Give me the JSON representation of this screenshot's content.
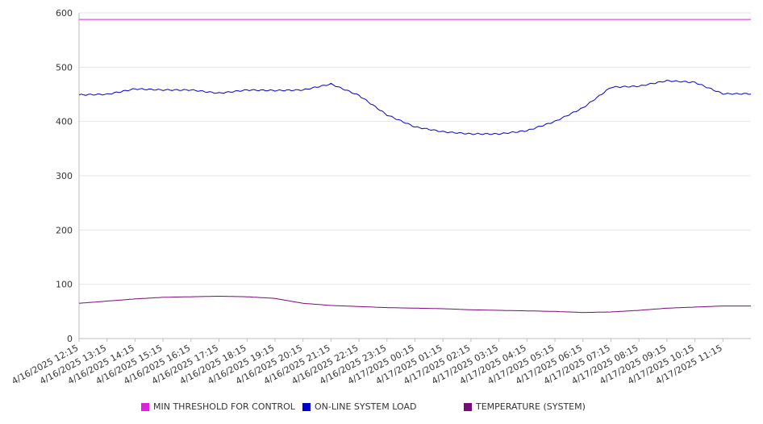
{
  "chart_data": {
    "type": "line",
    "title": "",
    "xlabel": "",
    "ylabel": "",
    "ylim": [
      0,
      600
    ],
    "y_ticks": [
      0,
      100,
      200,
      300,
      400,
      500,
      600
    ],
    "grid": true,
    "legend_position": "bottom",
    "categories": [
      "4/16/2025 12:15",
      "4/16/2025 13:15",
      "4/16/2025 14:15",
      "4/16/2025 15:15",
      "4/16/2025 16:15",
      "4/16/2025 17:15",
      "4/16/2025 18:15",
      "4/16/2025 19:15",
      "4/16/2025 20:15",
      "4/16/2025 21:15",
      "4/16/2025 22:15",
      "4/16/2025 23:15",
      "4/17/2025 00:15",
      "4/17/2025 01:15",
      "4/17/2025 02:15",
      "4/17/2025 03:15",
      "4/17/2025 04:15",
      "4/17/2025 05:15",
      "4/17/2025 06:15",
      "4/17/2025 07:15",
      "4/17/2025 08:15",
      "4/17/2025 09:15",
      "4/17/2025 10:15",
      "4/17/2025 11:15"
    ],
    "series": [
      {
        "name": "MIN THRESHOLD FOR CONTROL",
        "color": "#e020e0",
        "values": [
          588,
          588,
          588,
          588,
          588,
          588,
          588,
          588,
          588,
          588,
          588,
          588,
          588,
          588,
          588,
          588,
          588,
          588,
          588,
          588,
          588,
          588,
          588,
          588
        ]
      },
      {
        "name": "ON-LINE SYSTEM LOAD",
        "color": "#0000cc",
        "values": [
          449,
          450,
          460,
          458,
          458,
          452,
          458,
          457,
          458,
          469,
          448,
          412,
          390,
          381,
          377,
          377,
          383,
          400,
          425,
          463,
          465,
          475,
          472,
          451
        ]
      },
      {
        "name": "TEMPERATURE (SYSTEM)",
        "color": "#7a0a7a",
        "values": [
          65,
          69,
          73,
          76,
          77,
          78,
          77,
          74,
          65,
          61,
          59,
          57,
          56,
          55,
          53,
          52,
          51,
          50,
          48,
          49,
          52,
          56,
          58,
          60
        ]
      }
    ]
  }
}
